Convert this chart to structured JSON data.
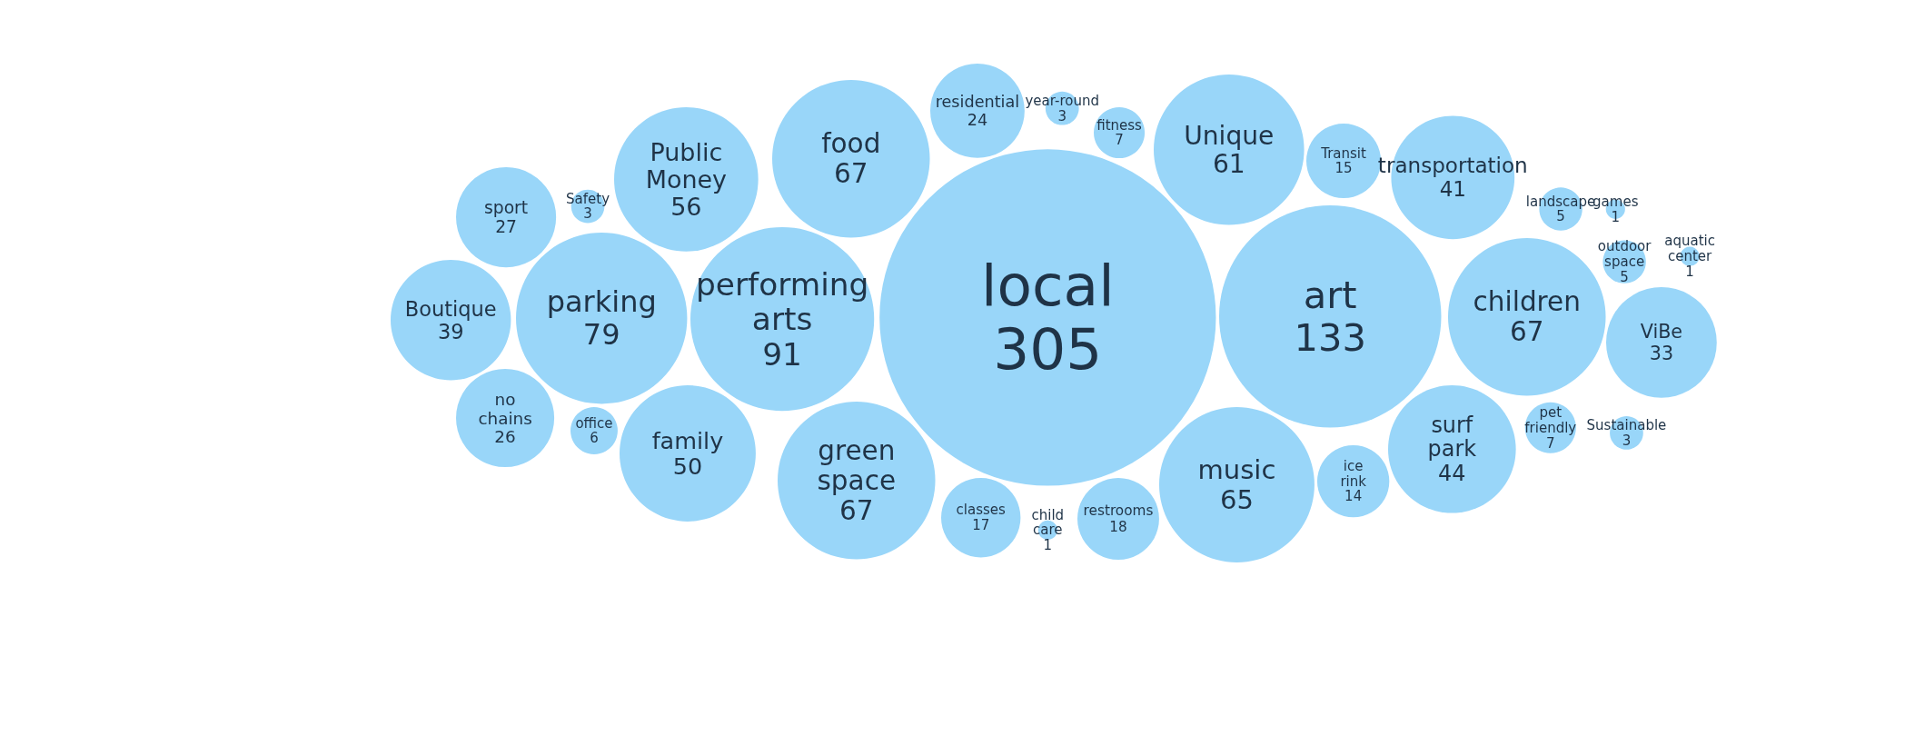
{
  "chart_data": {
    "type": "other",
    "categories": [
      "no chains",
      "sport",
      "fitness",
      "ViBe",
      "parking",
      "family",
      "music",
      "year-round",
      "pet friendly",
      "aquatic center",
      "Safety",
      "restrooms",
      "residential",
      "Unique",
      "performing arts",
      "Public Money",
      "outdoor space",
      "ice rink",
      "children",
      "office",
      "local",
      "classes",
      "Transit",
      "Sustainable",
      "food",
      "art",
      "transportation",
      "landscape",
      "Boutique",
      "child care",
      "games",
      "green space",
      "surf park"
    ],
    "values": [
      26,
      27,
      7,
      33,
      79,
      50,
      65,
      3,
      7,
      1,
      3,
      18,
      24,
      61,
      91,
      56,
      5,
      14,
      67,
      6,
      305,
      17,
      15,
      3,
      67,
      133,
      41,
      5,
      39,
      1,
      1,
      67,
      44
    ],
    "color": "#99d6f9",
    "data_labels": true
  }
}
